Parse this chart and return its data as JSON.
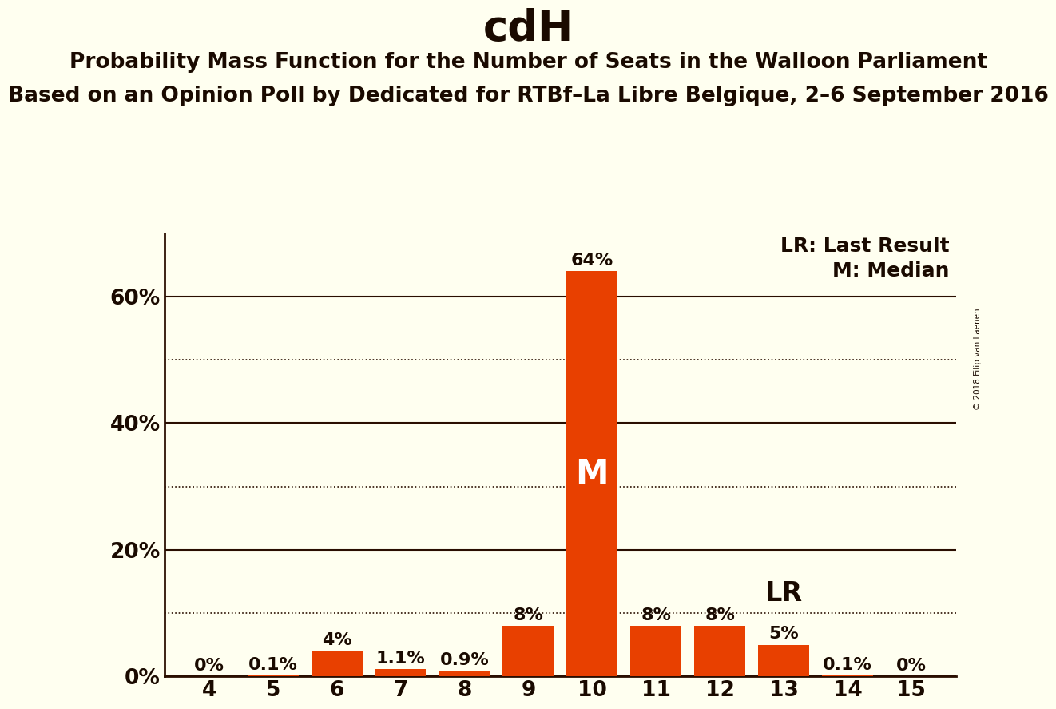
{
  "title": "cdH",
  "subtitle1": "Probability Mass Function for the Number of Seats in the Walloon Parliament",
  "subtitle2": "Based on an Opinion Poll by Dedicated for RTBf–La Libre Belgique, 2–6 September 2016",
  "copyright": "© 2018 Filip van Laenen",
  "seats": [
    4,
    5,
    6,
    7,
    8,
    9,
    10,
    11,
    12,
    13,
    14,
    15
  ],
  "probabilities": [
    0.0,
    0.001,
    0.04,
    0.011,
    0.009,
    0.08,
    0.64,
    0.08,
    0.08,
    0.05,
    0.001,
    0.0
  ],
  "labels": [
    "0%",
    "0.1%",
    "4%",
    "1.1%",
    "0.9%",
    "8%",
    "64%",
    "8%",
    "8%",
    "5%",
    "0.1%",
    "0%"
  ],
  "bar_color": "#E84000",
  "background_color": "#FFFFF0",
  "axis_color": "#2A0E00",
  "text_color": "#1A0A00",
  "median_seat": 10,
  "lr_seat": 13,
  "ylim": [
    0,
    0.7
  ],
  "yticks_solid": [
    0.0,
    0.2,
    0.4,
    0.6
  ],
  "yticks_dotted": [
    0.1,
    0.3,
    0.5
  ],
  "ytick_labels": [
    "0%",
    "20%",
    "40%",
    "60%"
  ],
  "title_fontsize": 38,
  "subtitle_fontsize": 19,
  "label_fontsize": 16,
  "tick_fontsize": 19,
  "median_label_fontsize": 30,
  "lr_label_fontsize": 24,
  "legend_fontsize": 18
}
